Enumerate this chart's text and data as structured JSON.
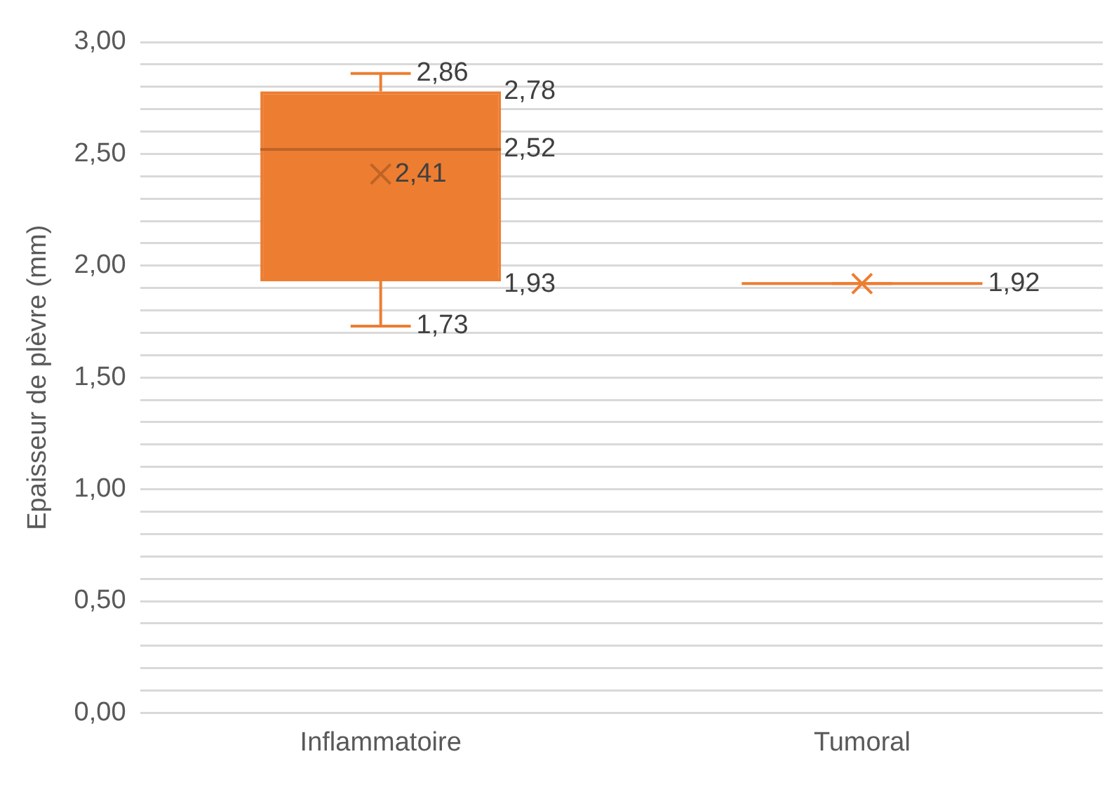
{
  "chart_data": {
    "type": "box",
    "ylabel": "Epaisseur de plèvre (mm)",
    "categories": [
      "Inflammatoire",
      "Tumoral"
    ],
    "boxes": [
      {
        "low": 1.73,
        "q1": 1.93,
        "median": 2.52,
        "q3": 2.78,
        "high": 2.86,
        "mean": 2.41
      },
      {
        "low": 1.92,
        "q1": 1.92,
        "median": 1.92,
        "q3": 1.92,
        "high": 1.92,
        "mean": 1.92
      }
    ],
    "color": "#ed7d31",
    "ylim": [
      0,
      3
    ],
    "yticks": [
      {
        "value": 0,
        "label": "0,00"
      },
      {
        "value": 0.1,
        "label": null
      },
      {
        "value": 0.2,
        "label": null
      },
      {
        "value": 0.3,
        "label": null
      },
      {
        "value": 0.4,
        "label": null
      },
      {
        "value": 0.5,
        "label": "0,50"
      },
      {
        "value": 0.6,
        "label": null
      },
      {
        "value": 0.7,
        "label": null
      },
      {
        "value": 0.8,
        "label": null
      },
      {
        "value": 0.9,
        "label": null
      },
      {
        "value": 1,
        "label": "1,00"
      },
      {
        "value": 1.1,
        "label": null
      },
      {
        "value": 1.2,
        "label": null
      },
      {
        "value": 1.3,
        "label": null
      },
      {
        "value": 1.4,
        "label": null
      },
      {
        "value": 1.5,
        "label": "1,50"
      },
      {
        "value": 1.6,
        "label": null
      },
      {
        "value": 1.7,
        "label": null
      },
      {
        "value": 1.8,
        "label": null
      },
      {
        "value": 1.9,
        "label": null
      },
      {
        "value": 2,
        "label": "2,00"
      },
      {
        "value": 2.1,
        "label": null
      },
      {
        "value": 2.2,
        "label": null
      },
      {
        "value": 2.3,
        "label": null
      },
      {
        "value": 2.4,
        "label": null
      },
      {
        "value": 2.5,
        "label": "2,50"
      },
      {
        "value": 2.6,
        "label": null
      },
      {
        "value": 2.7,
        "label": null
      },
      {
        "value": 2.8,
        "label": null
      },
      {
        "value": 2.9,
        "label": null
      },
      {
        "value": 3,
        "label": "3,00"
      }
    ],
    "grid": "y",
    "value_labels": [
      [
        "2,86",
        "2,78",
        "2,52",
        "2,41",
        "1,93",
        "1,73"
      ],
      [
        null,
        null,
        "1,92",
        null,
        null,
        null
      ]
    ]
  }
}
